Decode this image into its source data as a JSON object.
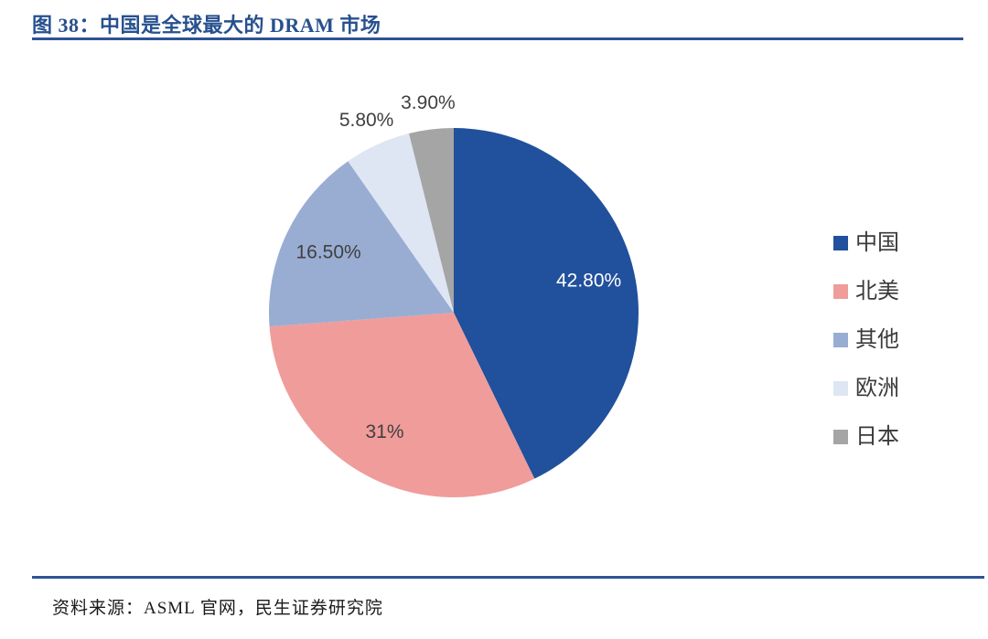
{
  "figure": {
    "title": "图 38：中国是全球最大的 DRAM 市场",
    "source": "资料来源：ASML 官网，民生证券研究院"
  },
  "colors": {
    "accent_rule_blue": "#2E5395",
    "title_text_blue": "#27508F",
    "outside_label_text": "#404040",
    "legend_text": "#3A3A3A"
  },
  "chart_data": {
    "type": "pie",
    "title": "中国是全球最大的 DRAM 市场",
    "categories": [
      "中国",
      "北美",
      "其他",
      "欧洲",
      "日本"
    ],
    "values": [
      42.8,
      31,
      16.5,
      5.8,
      3.9
    ],
    "labels": [
      "42.80%",
      "31%",
      "16.50%",
      "5.80%",
      "3.90%"
    ],
    "colors": [
      "#21509C",
      "#F09C9B",
      "#99ADD3",
      "#DFE6F3",
      "#A6A5A6"
    ],
    "label_colors": [
      "#FFFFFF",
      "#404040",
      "#404040",
      "#404040",
      "#404040"
    ],
    "start_angle_deg": 0,
    "direction": "clockwise",
    "legend_position": "right",
    "data_labels": "percent"
  }
}
